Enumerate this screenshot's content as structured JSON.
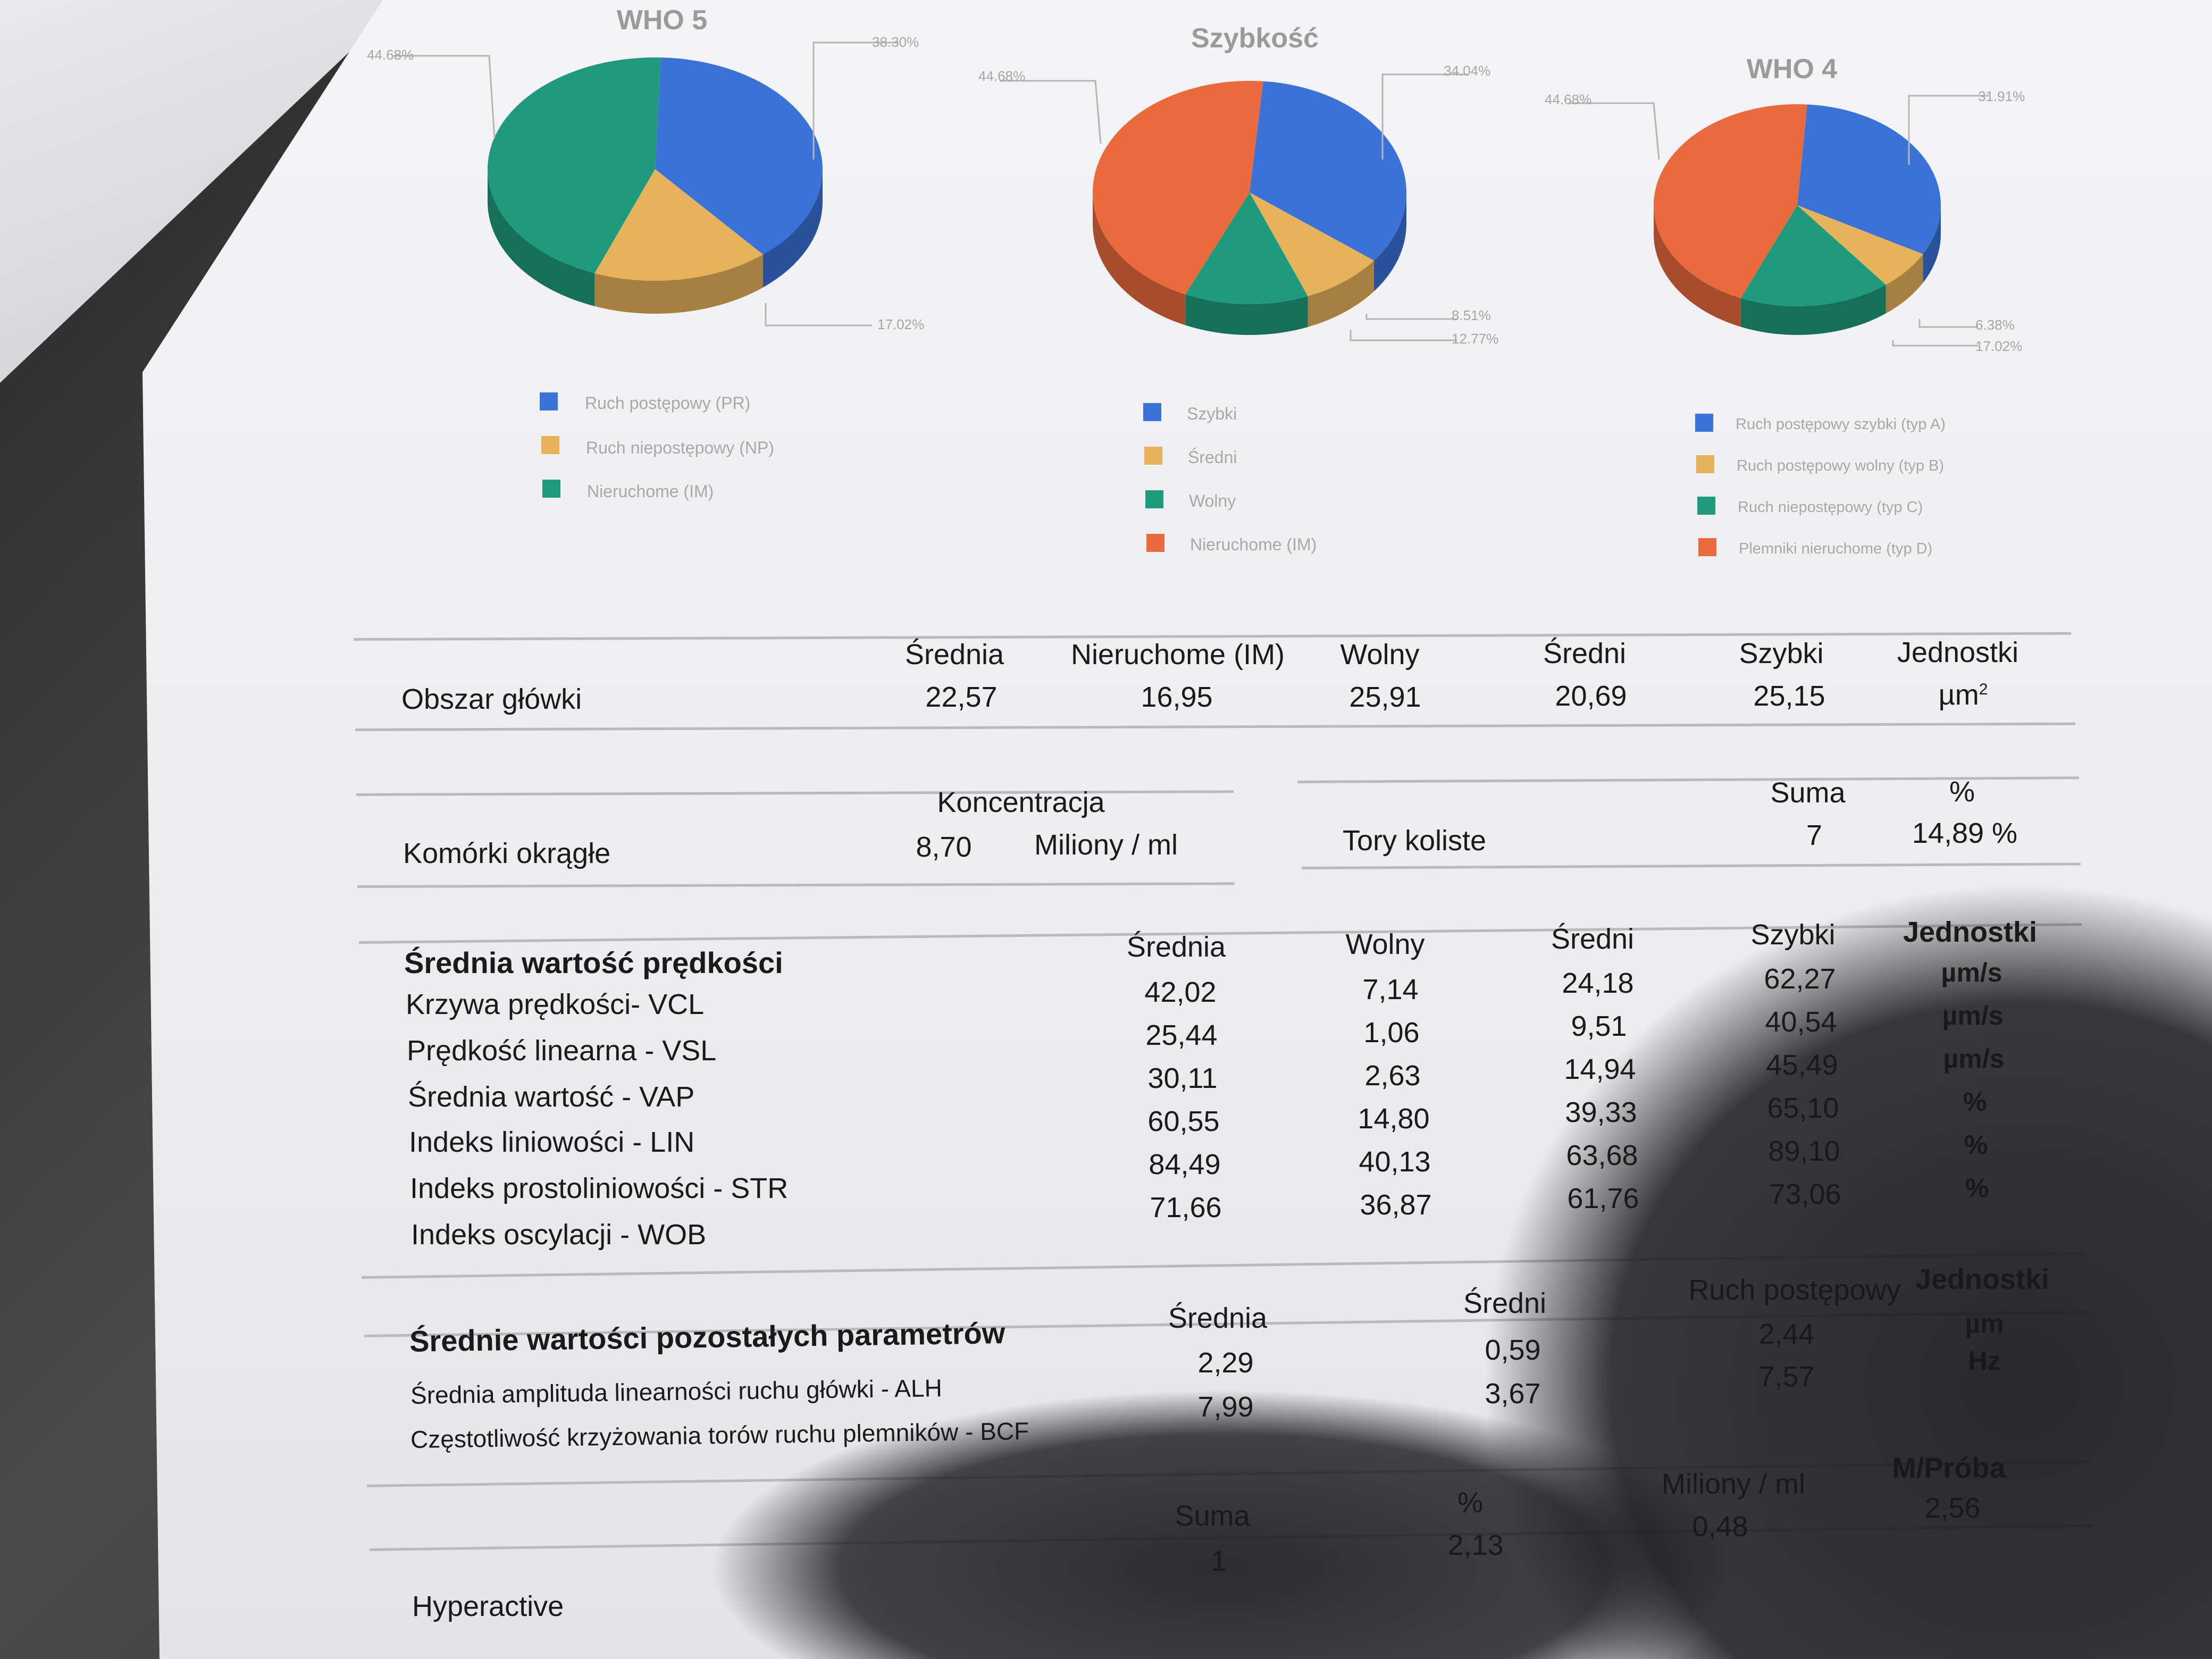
{
  "charts": [
    {
      "title": "WHO 5",
      "labels": {
        "left": "44.68%",
        "right_top": "38.30%",
        "right_bottom": "17.02%"
      },
      "legend": [
        "Ruch postępowy (PR)",
        "Ruch niepostępowy (NP)",
        "Nieruchome (IM)"
      ],
      "colors": [
        "#3a72d8",
        "#e6b25a",
        "#1f9a7c"
      ]
    },
    {
      "title": "Szybkość",
      "labels": {
        "left": "44.68%",
        "right_top": "34.04%",
        "right_bottom1": "8.51%",
        "right_bottom2": "12.77%"
      },
      "legend": [
        "Szybki",
        "Średni",
        "Wolny",
        "Nieruchome (IM)"
      ],
      "colors": [
        "#3a72d8",
        "#e6b25a",
        "#1f9a7c",
        "#e86a3d"
      ]
    },
    {
      "title": "WHO 4",
      "labels": {
        "left": "44.68%",
        "right_top": "31.91%",
        "right_bottom1": "6.38%",
        "right_bottom2": "17.02%"
      },
      "legend": [
        "Ruch postępowy szybki (typ A)",
        "Ruch postępowy wolny (typ B)",
        "Ruch niepostępowy (typ C)",
        "Plemniki nieruchome (typ D)"
      ],
      "colors": [
        "#3a72d8",
        "#e6b25a",
        "#1f9a7c",
        "#e86a3d"
      ]
    }
  ],
  "chart_data": [
    {
      "type": "pie",
      "title": "WHO 5",
      "categories": [
        "Ruch postępowy (PR)",
        "Ruch niepostępowy (NP)",
        "Nieruchome (IM)"
      ],
      "values": [
        38.3,
        17.02,
        44.68
      ],
      "colors": [
        "#3a72d8",
        "#e6b25a",
        "#1f9a7c"
      ],
      "legend": "bottom"
    },
    {
      "type": "pie",
      "title": "Szybkość",
      "categories": [
        "Szybki",
        "Średni",
        "Wolny",
        "Nieruchome (IM)"
      ],
      "values": [
        34.04,
        8.51,
        12.77,
        44.68
      ],
      "colors": [
        "#3a72d8",
        "#e6b25a",
        "#1f9a7c",
        "#e86a3d"
      ],
      "legend": "bottom"
    },
    {
      "type": "pie",
      "title": "WHO 4",
      "categories": [
        "Ruch postępowy szybki (typ A)",
        "Ruch postępowy wolny (typ B)",
        "Ruch niepostępowy (typ C)",
        "Plemniki nieruchome (typ D)"
      ],
      "values": [
        31.91,
        6.38,
        17.02,
        44.68
      ],
      "colors": [
        "#3a72d8",
        "#e6b25a",
        "#1f9a7c",
        "#e86a3d"
      ],
      "legend": "bottom"
    }
  ],
  "head_area": {
    "headers": [
      "Średnia",
      "Nieruchome (IM)",
      "Wolny",
      "Średni",
      "Szybki",
      "Jednostki"
    ],
    "label": "Obszar główki",
    "values": [
      "22,57",
      "16,95",
      "25,91",
      "20,69",
      "25,15"
    ],
    "unit": "µm",
    "unit_sup": "2"
  },
  "round_cells": {
    "header": "Koncentracja",
    "label": "Komórki okrągłe",
    "value": "8,70",
    "unit": "Miliony / ml"
  },
  "circular": {
    "header_sum": "Suma",
    "header_pct": "%",
    "label": "Tory koliste",
    "sum": "7",
    "pct": "14,89 %"
  },
  "velocity": {
    "title": "Średnia wartość prędkości",
    "headers": [
      "Średnia",
      "Wolny",
      "Średni",
      "Szybki",
      "Jednostki"
    ],
    "rows": [
      {
        "label": "Krzywa prędkości- VCL",
        "values": [
          "42,02",
          "7,14",
          "24,18",
          "62,27"
        ],
        "unit": "µm/s"
      },
      {
        "label": "Prędkość linearna - VSL",
        "values": [
          "25,44",
          "1,06",
          "9,51",
          "40,54"
        ],
        "unit": "µm/s"
      },
      {
        "label": "Średnia wartość - VAP",
        "values": [
          "30,11",
          "2,63",
          "14,94",
          "45,49"
        ],
        "unit": "µm/s"
      },
      {
        "label": "Indeks liniowości - LIN",
        "values": [
          "60,55",
          "14,80",
          "39,33",
          "65,10"
        ],
        "unit": "%"
      },
      {
        "label": "Indeks prostoliniowości - STR",
        "values": [
          "84,49",
          "40,13",
          "63,68",
          "89,10"
        ],
        "unit": "%"
      },
      {
        "label": "Indeks oscylacji - WOB",
        "values": [
          "71,66",
          "36,87",
          "61,76",
          "73,06"
        ],
        "unit": "%"
      }
    ]
  },
  "other": {
    "title": "Średnie wartości pozostałych parametrów",
    "headers": [
      "Średnia",
      "Średni",
      "Ruch postępowy",
      "Jednostki"
    ],
    "rows": [
      {
        "label": "Średnia amplituda linearności ruchu główki - ALH",
        "values": [
          "2,29",
          "0,59",
          "2,44"
        ],
        "unit": "µm"
      },
      {
        "label": "Częstotliwość krzyżowania torów ruchu plemników - BCF",
        "values": [
          "7,99",
          "3,67",
          "7,57"
        ],
        "unit": "Hz"
      }
    ]
  },
  "hyper": {
    "headers": [
      "Suma",
      "%",
      "Miliony / ml",
      "M/Próba"
    ],
    "label": "Hyperactive",
    "values": [
      "1",
      "2,13",
      "0,48",
      "2,56"
    ]
  }
}
